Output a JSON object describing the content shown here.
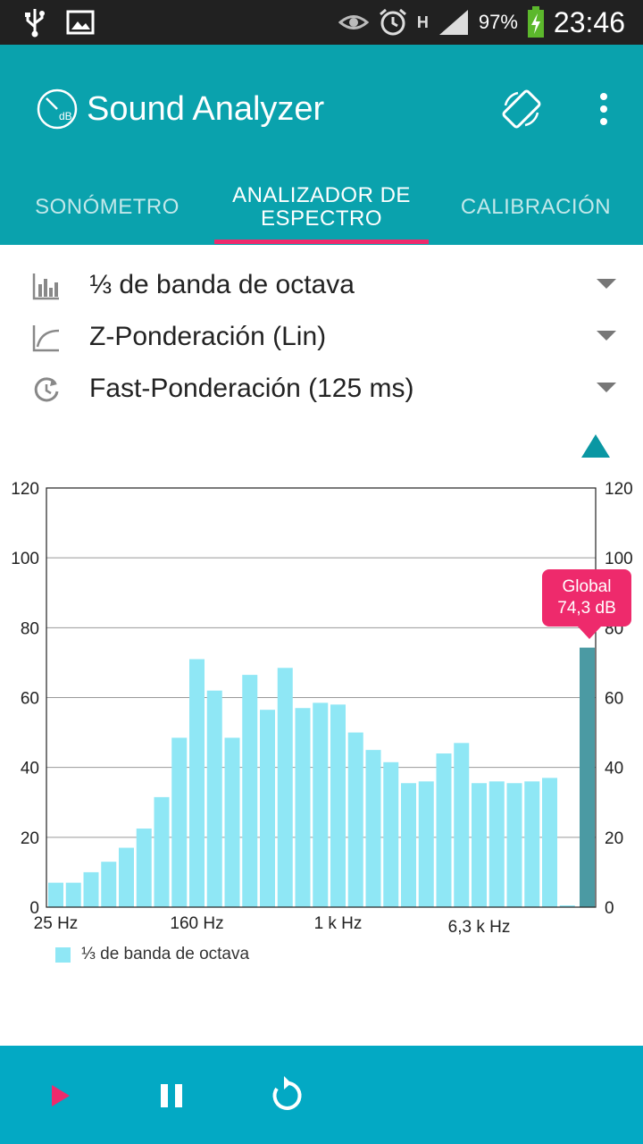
{
  "status_bar": {
    "battery_percent": "97%",
    "time": "23:46",
    "network_label": "H",
    "icons": [
      "usb-icon",
      "image-icon",
      "eye-icon",
      "alarm-icon",
      "signal-icon",
      "battery-charging-icon"
    ]
  },
  "app": {
    "title": "Sound Analyzer",
    "logo_text": "dB",
    "accent_color": "#0aa2ad",
    "highlight_color": "#ee2a6c"
  },
  "tabs": [
    {
      "label": "SONÓMETRO",
      "active": false
    },
    {
      "label": "ANALIZADOR DE ESPECTRO",
      "active": true
    },
    {
      "label": "CALIBRACIÓN",
      "active": false
    }
  ],
  "options": {
    "band": {
      "label": "⅓ de banda de octava",
      "icon": "bar-chart-icon"
    },
    "weighting": {
      "label": "Z-Ponderación (Lin)",
      "icon": "curve-icon"
    },
    "time_weighting": {
      "label": "Fast-Ponderación (125 ms)",
      "icon": "history-icon"
    }
  },
  "tooltip": {
    "title": "Global",
    "value": "74,3 dB"
  },
  "legend": {
    "label": "⅓ de banda de octava"
  },
  "chart_data": {
    "type": "bar",
    "ylim": [
      0,
      120
    ],
    "y_ticks": [
      0,
      20,
      40,
      60,
      80,
      100,
      120
    ],
    "x_tick_labels": [
      {
        "label": "25 Hz",
        "band_index": 0
      },
      {
        "label": "160 Hz",
        "band_index": 8
      },
      {
        "label": "1 k Hz",
        "band_index": 16
      },
      {
        "label": "6,3 k Hz",
        "band_index": 24
      }
    ],
    "series": [
      {
        "name": "⅓ de banda de octava",
        "color": "#8fe7f5",
        "values": [
          7,
          7,
          10,
          13,
          17,
          22.5,
          31.5,
          48.5,
          71,
          62,
          48.5,
          66.5,
          56.5,
          68.5,
          57,
          58.5,
          58,
          50,
          45,
          41.5,
          35.5,
          36,
          44,
          47,
          35.5,
          36,
          35.5,
          36,
          37,
          0.5
        ]
      }
    ],
    "global": {
      "value": 74.3,
      "color": "#4b9aa3"
    },
    "grid": true
  }
}
